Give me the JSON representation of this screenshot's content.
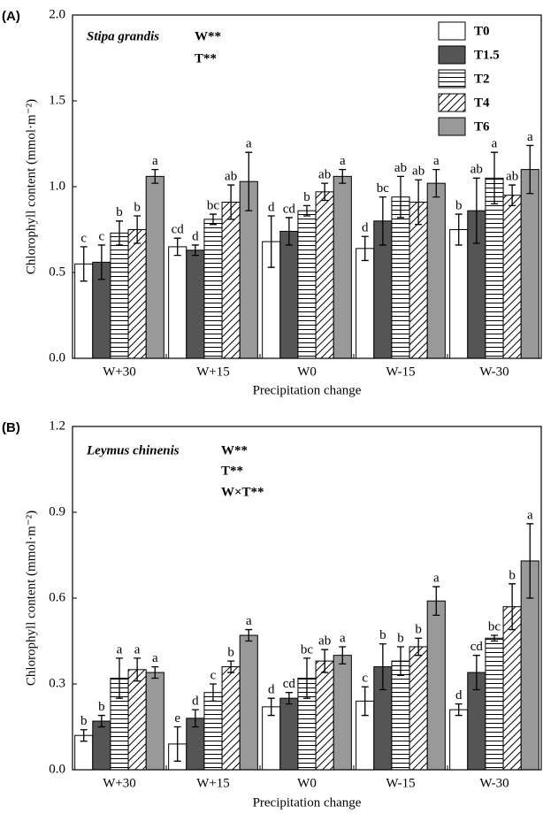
{
  "chart_data": [
    {
      "type": "bar",
      "panel_label": "(A)",
      "title": "Stipa grandis",
      "annotations": [
        "W**",
        "T**"
      ],
      "x_label": "Precipitation change",
      "y_label": "Chlorophyll content (mmol·m⁻²)",
      "categories": [
        "W+30",
        "W+15",
        "W0",
        "W-15",
        "W-30"
      ],
      "ylim": [
        0,
        2
      ],
      "yticks": [
        {
          "value": 0,
          "label": "0.0"
        },
        0.5,
        {
          "value": 1,
          "label": "1.0"
        },
        1.5,
        {
          "value": 2,
          "label": "2.0"
        }
      ],
      "legend": "upper right",
      "series": [
        {
          "name": "T0",
          "color": "#ffffff",
          "hatch": "none",
          "values": [
            0.55,
            0.65,
            0.68,
            0.64,
            0.75
          ],
          "errors": [
            0.1,
            0.05,
            0.15,
            0.07,
            0.09
          ],
          "letters": [
            "c",
            "cd",
            "d",
            "d",
            "b"
          ]
        },
        {
          "name": "T1.5",
          "color": "#555555",
          "hatch": "none",
          "values": [
            0.56,
            0.63,
            0.74,
            0.8,
            0.86
          ],
          "errors": [
            0.1,
            0.03,
            0.08,
            0.14,
            0.19
          ],
          "letters": [
            "c",
            "d",
            "cd",
            "bc",
            "ab"
          ]
        },
        {
          "name": "T2",
          "color": "#ffffff",
          "hatch": "horizontal",
          "values": [
            0.73,
            0.81,
            0.86,
            0.94,
            1.05
          ],
          "errors": [
            0.07,
            0.03,
            0.03,
            0.12,
            0.15
          ],
          "letters": [
            "b",
            "bc",
            "b",
            "ab",
            "a"
          ]
        },
        {
          "name": "T4",
          "color": "#ffffff",
          "hatch": "diagonal",
          "values": [
            0.75,
            0.91,
            0.97,
            0.91,
            0.95
          ],
          "errors": [
            0.08,
            0.1,
            0.05,
            0.13,
            0.06
          ],
          "letters": [
            "b",
            "ab",
            "ab",
            "ab",
            "ab"
          ]
        },
        {
          "name": "T6",
          "color": "#999999",
          "hatch": "none",
          "values": [
            1.06,
            1.03,
            1.06,
            1.02,
            1.1
          ],
          "errors": [
            0.04,
            0.17,
            0.04,
            0.08,
            0.14
          ],
          "letters": [
            "a",
            "a",
            "a",
            "a",
            "a"
          ]
        }
      ]
    },
    {
      "type": "bar",
      "panel_label": "(B)",
      "title": "Leymus chinenis",
      "annotations": [
        "W**",
        "T**",
        "W×T**"
      ],
      "x_label": "Precipitation change",
      "y_label": "Chlorophyll content (mmol·m⁻²)",
      "categories": [
        "W+30",
        "W+15",
        "W0",
        "W-15",
        "W-30"
      ],
      "ylim": [
        0,
        1.2
      ],
      "yticks": [
        {
          "value": 0,
          "label": "0.0"
        },
        0.3,
        0.6,
        0.9,
        1.2
      ],
      "series": [
        {
          "color": "#ffffff",
          "hatch": "none",
          "values": [
            0.12,
            0.09,
            0.22,
            0.24,
            0.21
          ],
          "errors": [
            0.02,
            0.06,
            0.03,
            0.05,
            0.02
          ],
          "letters": [
            "b",
            "e",
            "d",
            "c",
            "d"
          ]
        },
        {
          "color": "#555555",
          "hatch": "none",
          "values": [
            0.17,
            0.18,
            0.25,
            0.36,
            0.34
          ],
          "errors": [
            0.02,
            0.03,
            0.02,
            0.08,
            0.06
          ],
          "letters": [
            "b",
            "d",
            "cd",
            "b",
            "cd"
          ]
        },
        {
          "color": "#ffffff",
          "hatch": "horizontal",
          "values": [
            0.32,
            0.27,
            0.32,
            0.38,
            0.46
          ],
          "errors": [
            0.07,
            0.03,
            0.07,
            0.05,
            0.01
          ],
          "letters": [
            "a",
            "c",
            "bc",
            "b",
            "bc"
          ]
        },
        {
          "color": "#ffffff",
          "hatch": "diagonal",
          "values": [
            0.35,
            0.36,
            0.38,
            0.43,
            0.57
          ],
          "errors": [
            0.04,
            0.02,
            0.04,
            0.03,
            0.08
          ],
          "letters": [
            "a",
            "b",
            "ab",
            "b",
            "b"
          ]
        },
        {
          "color": "#999999",
          "hatch": "none",
          "values": [
            0.34,
            0.47,
            0.4,
            0.59,
            0.73
          ],
          "errors": [
            0.02,
            0.02,
            0.03,
            0.05,
            0.13
          ],
          "letters": [
            "a",
            "a",
            "a",
            "a",
            "a"
          ]
        }
      ]
    }
  ]
}
